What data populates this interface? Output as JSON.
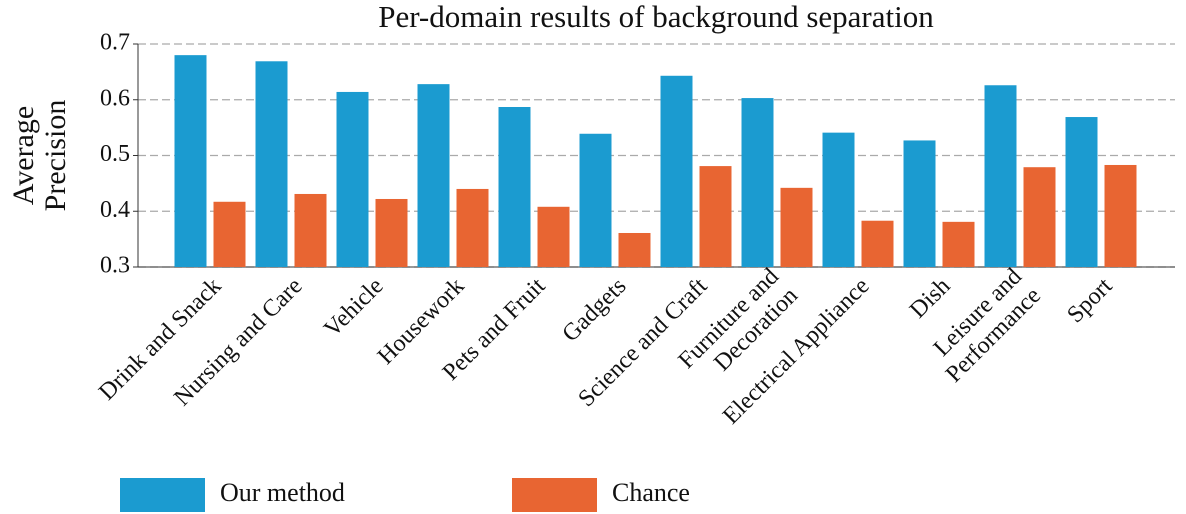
{
  "chart_data": {
    "type": "bar",
    "title": "Per-domain results of background separation",
    "ylabel": "Average Precision",
    "categories": [
      "Drink and Snack",
      "Nursing and Care",
      "Vehicle",
      "Housework",
      "Pets and Fruit",
      "Gadgets",
      "Science and Craft",
      "Furniture and\nDecoration",
      "Electrical Appliance",
      "Dish",
      "Leisure and\nPerformance",
      "Sport"
    ],
    "series": [
      {
        "name": "Our method",
        "color": "#1b9bd0",
        "values": [
          0.68,
          0.669,
          0.614,
          0.628,
          0.587,
          0.539,
          0.643,
          0.603,
          0.541,
          0.527,
          0.626,
          0.569
        ]
      },
      {
        "name": "Chance",
        "color": "#e86532",
        "values": [
          0.417,
          0.431,
          0.422,
          0.44,
          0.408,
          0.361,
          0.481,
          0.442,
          0.383,
          0.381,
          0.479,
          0.483
        ]
      }
    ],
    "ylim": [
      0.3,
      0.7
    ],
    "yticks": [
      0.3,
      0.4,
      0.5,
      0.6,
      0.7
    ],
    "grid": true
  }
}
